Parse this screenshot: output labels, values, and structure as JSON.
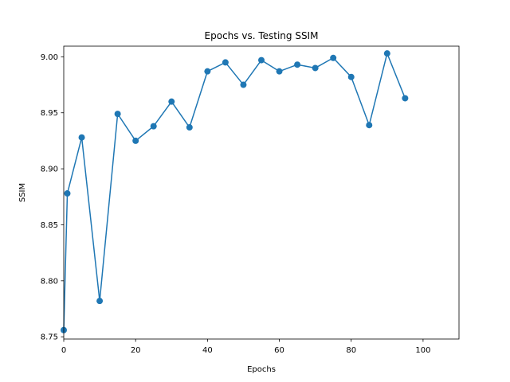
{
  "chart_data": {
    "type": "line",
    "title": "Epochs vs. Testing SSIM",
    "xlabel": "Epochs",
    "ylabel": "SSIM",
    "xlim": [
      0,
      110
    ],
    "ylim": [
      8.748,
      9.0095
    ],
    "xticks": [
      0,
      20,
      40,
      60,
      80,
      100
    ],
    "yticks": [
      8.75,
      8.8,
      8.85,
      8.9,
      8.95,
      9.0
    ],
    "ytick_labels": [
      "8.75",
      "8.80",
      "8.85",
      "8.90",
      "8.95",
      "9.00"
    ],
    "grid": false,
    "marker": "circle",
    "series": [
      {
        "color": "#1f77b4",
        "x": [
          0,
          1,
          5,
          10,
          15,
          20,
          25,
          30,
          35,
          40,
          45,
          50,
          55,
          60,
          65,
          70,
          75,
          80,
          85,
          90,
          95
        ],
        "y": [
          8.756,
          8.878,
          8.928,
          8.782,
          8.949,
          8.925,
          8.938,
          8.96,
          8.937,
          8.987,
          8.995,
          8.975,
          8.997,
          8.987,
          8.993,
          8.99,
          8.999,
          8.982,
          8.939,
          9.003,
          8.963
        ]
      }
    ]
  }
}
